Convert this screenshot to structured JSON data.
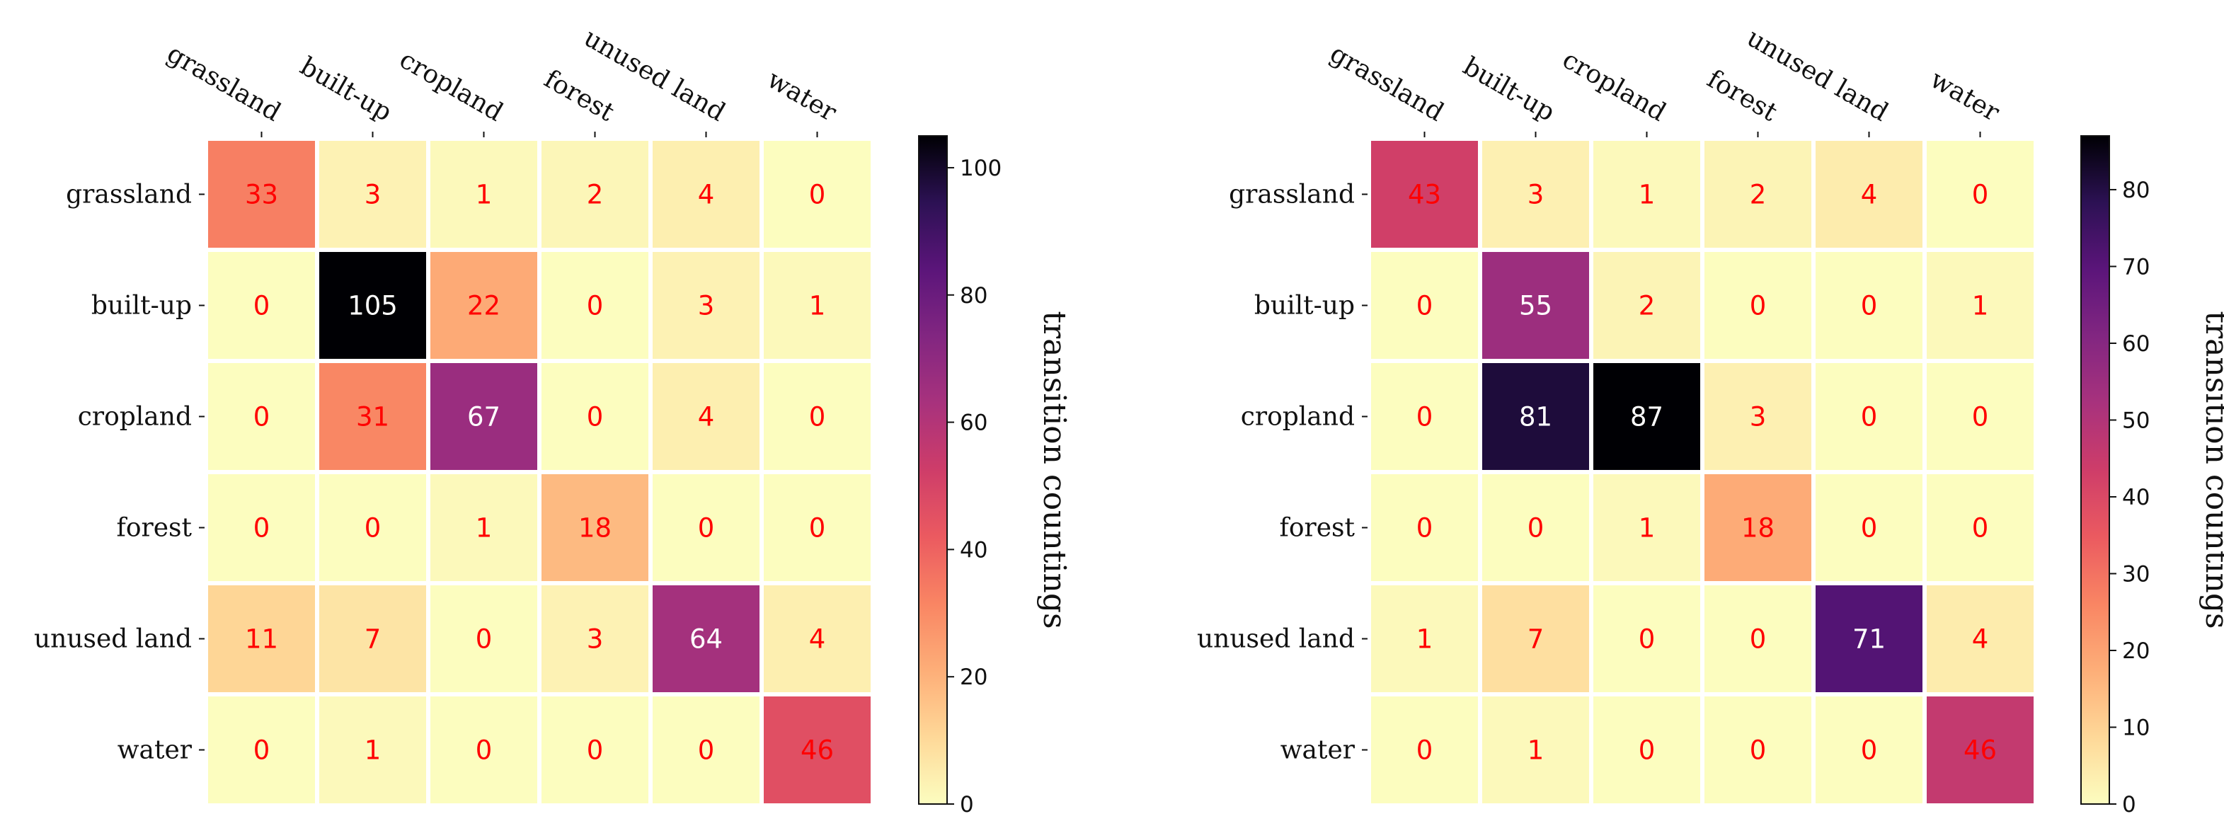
{
  "chart_data": [
    {
      "type": "heatmap",
      "title": "",
      "row_labels": [
        "grassland",
        "built-up",
        "cropland",
        "forest",
        "unused land",
        "water"
      ],
      "col_labels": [
        "grassland",
        "built-up",
        "cropland",
        "forest",
        "unused land",
        "water"
      ],
      "values": [
        [
          33,
          3,
          1,
          2,
          4,
          0
        ],
        [
          0,
          105,
          22,
          0,
          3,
          1
        ],
        [
          0,
          31,
          67,
          0,
          4,
          0
        ],
        [
          0,
          0,
          1,
          18,
          0,
          0
        ],
        [
          11,
          7,
          0,
          3,
          64,
          4
        ],
        [
          0,
          1,
          0,
          0,
          0,
          46
        ]
      ],
      "colorbar": {
        "label": "transition countings",
        "range": [
          0,
          105
        ],
        "ticks": [
          0,
          20,
          40,
          60,
          80,
          100
        ]
      },
      "colormap": "magma_r",
      "annotation_color": "#ff0000",
      "annotation_color_dark": "#ffffff"
    },
    {
      "type": "heatmap",
      "title": "",
      "row_labels": [
        "grassland",
        "built-up",
        "cropland",
        "forest",
        "unused land",
        "water"
      ],
      "col_labels": [
        "grassland",
        "built-up",
        "cropland",
        "forest",
        "unused land",
        "water"
      ],
      "values": [
        [
          43,
          3,
          1,
          2,
          4,
          0
        ],
        [
          0,
          55,
          2,
          0,
          0,
          1
        ],
        [
          0,
          81,
          87,
          3,
          0,
          0
        ],
        [
          0,
          0,
          1,
          18,
          0,
          0
        ],
        [
          1,
          7,
          0,
          0,
          71,
          4
        ],
        [
          0,
          1,
          0,
          0,
          0,
          46
        ]
      ],
      "colorbar": {
        "label": "transition countings",
        "range": [
          0,
          87
        ],
        "ticks": [
          0,
          10,
          20,
          30,
          40,
          50,
          60,
          70,
          80
        ]
      },
      "colormap": "magma_r",
      "annotation_color": "#ff0000",
      "annotation_color_dark": "#ffffff"
    }
  ]
}
